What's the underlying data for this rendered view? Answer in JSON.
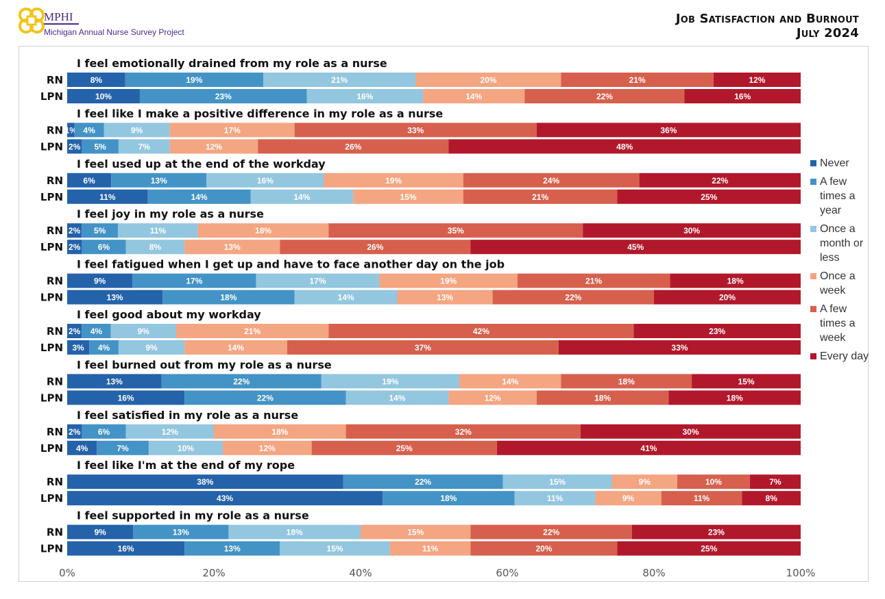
{
  "header": {
    "org": "MPHI",
    "project": "Michigan Annual Nurse Survey Project",
    "title": "Job Satisfaction and Burnout",
    "date": "July 2024"
  },
  "chart_data": {
    "type": "stacked-bar-horizontal-100",
    "xlim": [
      0,
      100
    ],
    "xticks": [
      "0%",
      "20%",
      "40%",
      "60%",
      "80%",
      "100%"
    ],
    "legend_position": "right",
    "series_names": [
      "Never",
      "A few times a year",
      "Once a month or less",
      "Once a week",
      "A few times a week",
      "Every day"
    ],
    "colors": [
      "#2462aa",
      "#4393c6",
      "#93c6df",
      "#f4a582",
      "#d6604d",
      "#b2182b"
    ],
    "groups": [
      {
        "title": "I feel emotionally drained from my role as a nurse",
        "RN": [
          8,
          19,
          21,
          20,
          21,
          12
        ],
        "LPN": [
          10,
          23,
          16,
          14,
          22,
          16
        ]
      },
      {
        "title": "I feel like I make a positive difference in my role as a nurse",
        "RN": [
          1,
          4,
          9,
          17,
          33,
          36
        ],
        "LPN": [
          2,
          5,
          7,
          12,
          26,
          48
        ]
      },
      {
        "title": "I feel used up at the end of the workday",
        "RN": [
          6,
          13,
          16,
          19,
          24,
          22
        ],
        "LPN": [
          11,
          14,
          14,
          15,
          21,
          25
        ]
      },
      {
        "title": "I feel joy in my role as a nurse",
        "RN": [
          2,
          5,
          11,
          18,
          35,
          30
        ],
        "LPN": [
          2,
          6,
          8,
          13,
          26,
          45
        ]
      },
      {
        "title": "I feel fatigued when I get up and have to face another day on the job",
        "RN": [
          9,
          17,
          17,
          19,
          21,
          18
        ],
        "LPN": [
          13,
          18,
          14,
          13,
          22,
          20
        ]
      },
      {
        "title": "I feel good about my workday",
        "RN": [
          2,
          4,
          9,
          21,
          42,
          23
        ],
        "LPN": [
          3,
          4,
          9,
          14,
          37,
          33
        ]
      },
      {
        "title": "I feel burned out from my role as a nurse",
        "RN": [
          13,
          22,
          19,
          14,
          18,
          15
        ],
        "LPN": [
          16,
          22,
          14,
          12,
          18,
          18
        ]
      },
      {
        "title": "I feel satisfied in my role as a nurse",
        "RN": [
          2,
          6,
          12,
          18,
          32,
          30
        ],
        "LPN": [
          4,
          7,
          10,
          12,
          25,
          41
        ]
      },
      {
        "title": "I feel like I'm at the end of my rope",
        "RN": [
          38,
          22,
          15,
          9,
          10,
          7
        ],
        "LPN": [
          43,
          18,
          11,
          9,
          11,
          8
        ]
      },
      {
        "title": "I feel supported in my role as a nurse",
        "RN": [
          9,
          13,
          18,
          15,
          22,
          23
        ],
        "LPN": [
          16,
          13,
          15,
          11,
          20,
          25
        ]
      }
    ],
    "row_labels": [
      "RN",
      "LPN"
    ]
  }
}
